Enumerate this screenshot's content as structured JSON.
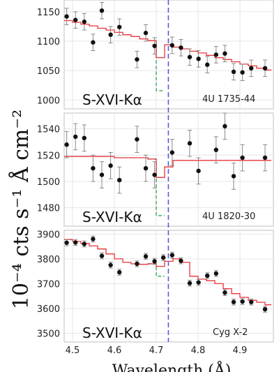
{
  "chart_data": {
    "type": "scatter",
    "ylabel": "10⁻⁴ cts s⁻¹ Å cm⁻²",
    "xlabel": "Wavelength (Å)",
    "xlim": [
      4.48,
      4.98
    ],
    "x_ticks": [
      "4.5",
      "4.6",
      "4.7",
      "4.8",
      "4.9"
    ],
    "x_tick_values": [
      4.5,
      4.6,
      4.7,
      4.8,
      4.9
    ],
    "reference_line_x": 4.729,
    "colors": {
      "data": "#111111",
      "model": "#e8333a",
      "absorption_model": "#3aa35a",
      "reference_line": "#5a5adc",
      "grid": "#e6e6e6"
    },
    "panels": [
      {
        "line_label": "S-XVI-Kα",
        "source": "4U 1735-44",
        "ylim": [
          985,
          1170
        ],
        "y_ticks": [
          "1150",
          "1100",
          "1050",
          "1000"
        ],
        "y_tick_values": [
          1150,
          1100,
          1050,
          1000
        ],
        "points": [
          {
            "x": 4.486,
            "y": 1142,
            "err": 14
          },
          {
            "x": 4.507,
            "y": 1136,
            "err": 14
          },
          {
            "x": 4.528,
            "y": 1133,
            "err": 14
          },
          {
            "x": 4.549,
            "y": 1098,
            "err": 14
          },
          {
            "x": 4.57,
            "y": 1152,
            "err": 14
          },
          {
            "x": 4.591,
            "y": 1111,
            "err": 14
          },
          {
            "x": 4.612,
            "y": 1124,
            "err": 14
          },
          {
            "x": 4.654,
            "y": 1069,
            "err": 14
          },
          {
            "x": 4.675,
            "y": 1114,
            "err": 14
          },
          {
            "x": 4.696,
            "y": 1092,
            "err": 14
          },
          {
            "x": 4.738,
            "y": 1093,
            "err": 14
          },
          {
            "x": 4.759,
            "y": 1089,
            "err": 14
          },
          {
            "x": 4.78,
            "y": 1073,
            "err": 14
          },
          {
            "x": 4.801,
            "y": 1070,
            "err": 14
          },
          {
            "x": 4.822,
            "y": 1060,
            "err": 14
          },
          {
            "x": 4.843,
            "y": 1077,
            "err": 14
          },
          {
            "x": 4.864,
            "y": 1079,
            "err": 14
          },
          {
            "x": 4.885,
            "y": 1048,
            "err": 14
          },
          {
            "x": 4.906,
            "y": 1047,
            "err": 14
          },
          {
            "x": 4.927,
            "y": 1054,
            "err": 14
          },
          {
            "x": 4.96,
            "y": 1054,
            "err": 14
          }
        ],
        "model": [
          {
            "x": 4.48,
            "y": 1135
          },
          {
            "x": 4.5,
            "y": 1132
          },
          {
            "x": 4.52,
            "y": 1129
          },
          {
            "x": 4.54,
            "y": 1126
          },
          {
            "x": 4.56,
            "y": 1122
          },
          {
            "x": 4.58,
            "y": 1119
          },
          {
            "x": 4.6,
            "y": 1115
          },
          {
            "x": 4.62,
            "y": 1111
          },
          {
            "x": 4.64,
            "y": 1108
          },
          {
            "x": 4.66,
            "y": 1104
          },
          {
            "x": 4.68,
            "y": 1101
          },
          {
            "x": 4.7,
            "y": 1072
          },
          {
            "x": 4.72,
            "y": 1094
          },
          {
            "x": 4.74,
            "y": 1090
          },
          {
            "x": 4.76,
            "y": 1087
          },
          {
            "x": 4.78,
            "y": 1083
          },
          {
            "x": 4.8,
            "y": 1080
          },
          {
            "x": 4.82,
            "y": 1076
          },
          {
            "x": 4.84,
            "y": 1072
          },
          {
            "x": 4.86,
            "y": 1069
          },
          {
            "x": 4.88,
            "y": 1065
          },
          {
            "x": 4.9,
            "y": 1061
          },
          {
            "x": 4.92,
            "y": 1058
          },
          {
            "x": 4.94,
            "y": 1054
          },
          {
            "x": 4.96,
            "y": 1051
          },
          {
            "x": 4.975,
            "y": 1049
          }
        ],
        "absorption_model": [
          {
            "x": 4.68,
            "y": 1101
          },
          {
            "x": 4.7,
            "y": 1016
          },
          {
            "x": 4.72,
            "y": 1094
          }
        ]
      },
      {
        "line_label": "S-XVI-Kα",
        "source": "4U 1820-30",
        "ylim": [
          1466,
          1552
        ],
        "y_ticks": [
          "1540",
          "1520",
          "1500",
          "1480"
        ],
        "y_tick_values": [
          1540,
          1520,
          1500,
          1480
        ],
        "points": [
          {
            "x": 4.486,
            "y": 1528,
            "err": 10
          },
          {
            "x": 4.507,
            "y": 1534,
            "err": 10
          },
          {
            "x": 4.528,
            "y": 1533,
            "err": 10
          },
          {
            "x": 4.549,
            "y": 1510,
            "err": 10
          },
          {
            "x": 4.57,
            "y": 1505,
            "err": 10
          },
          {
            "x": 4.591,
            "y": 1512,
            "err": 10
          },
          {
            "x": 4.612,
            "y": 1501,
            "err": 10
          },
          {
            "x": 4.654,
            "y": 1532,
            "err": 10
          },
          {
            "x": 4.675,
            "y": 1510,
            "err": 10
          },
          {
            "x": 4.696,
            "y": 1505,
            "err": 10
          },
          {
            "x": 4.738,
            "y": 1522,
            "err": 10
          },
          {
            "x": 4.78,
            "y": 1529,
            "err": 10
          },
          {
            "x": 4.801,
            "y": 1508,
            "err": 10
          },
          {
            "x": 4.843,
            "y": 1524,
            "err": 10
          },
          {
            "x": 4.864,
            "y": 1542,
            "err": 10
          },
          {
            "x": 4.885,
            "y": 1504,
            "err": 10
          },
          {
            "x": 4.906,
            "y": 1518,
            "err": 10
          },
          {
            "x": 4.96,
            "y": 1518,
            "err": 10
          }
        ],
        "model": [
          {
            "x": 4.48,
            "y": 1519
          },
          {
            "x": 4.5,
            "y": 1519
          },
          {
            "x": 4.52,
            "y": 1519
          },
          {
            "x": 4.54,
            "y": 1519
          },
          {
            "x": 4.56,
            "y": 1519
          },
          {
            "x": 4.58,
            "y": 1519
          },
          {
            "x": 4.6,
            "y": 1518
          },
          {
            "x": 4.62,
            "y": 1518
          },
          {
            "x": 4.64,
            "y": 1518
          },
          {
            "x": 4.66,
            "y": 1518
          },
          {
            "x": 4.68,
            "y": 1517
          },
          {
            "x": 4.7,
            "y": 1503
          },
          {
            "x": 4.72,
            "y": 1511
          },
          {
            "x": 4.74,
            "y": 1516
          },
          {
            "x": 4.76,
            "y": 1516
          },
          {
            "x": 4.78,
            "y": 1516
          },
          {
            "x": 4.8,
            "y": 1516
          },
          {
            "x": 4.82,
            "y": 1516
          },
          {
            "x": 4.84,
            "y": 1516
          },
          {
            "x": 4.86,
            "y": 1516
          },
          {
            "x": 4.88,
            "y": 1516
          },
          {
            "x": 4.9,
            "y": 1516
          },
          {
            "x": 4.92,
            "y": 1516
          },
          {
            "x": 4.94,
            "y": 1516
          },
          {
            "x": 4.96,
            "y": 1516
          },
          {
            "x": 4.975,
            "y": 1516
          }
        ],
        "absorption_model": [
          {
            "x": 4.68,
            "y": 1517
          },
          {
            "x": 4.7,
            "y": 1474
          },
          {
            "x": 4.72,
            "y": 1511
          }
        ]
      },
      {
        "line_label": "S-XVI-Kα",
        "source": "Cyg X-2",
        "ylim": [
          3465,
          3915
        ],
        "y_ticks": [
          "3900",
          "3800",
          "3700",
          "3600",
          "3500"
        ],
        "y_tick_values": [
          3900,
          3800,
          3700,
          3600,
          3500
        ],
        "points": [
          {
            "x": 4.486,
            "y": 3865,
            "err": 12
          },
          {
            "x": 4.507,
            "y": 3866,
            "err": 12
          },
          {
            "x": 4.528,
            "y": 3860,
            "err": 12
          },
          {
            "x": 4.549,
            "y": 3880,
            "err": 12
          },
          {
            "x": 4.57,
            "y": 3812,
            "err": 12
          },
          {
            "x": 4.591,
            "y": 3775,
            "err": 12
          },
          {
            "x": 4.612,
            "y": 3746,
            "err": 12
          },
          {
            "x": 4.654,
            "y": 3780,
            "err": 12
          },
          {
            "x": 4.675,
            "y": 3810,
            "err": 12
          },
          {
            "x": 4.696,
            "y": 3790,
            "err": 12
          },
          {
            "x": 4.717,
            "y": 3805,
            "err": 12
          },
          {
            "x": 4.738,
            "y": 3815,
            "err": 12
          },
          {
            "x": 4.759,
            "y": 3792,
            "err": 12
          },
          {
            "x": 4.78,
            "y": 3702,
            "err": 12
          },
          {
            "x": 4.801,
            "y": 3705,
            "err": 12
          },
          {
            "x": 4.822,
            "y": 3732,
            "err": 12
          },
          {
            "x": 4.843,
            "y": 3741,
            "err": 12
          },
          {
            "x": 4.864,
            "y": 3664,
            "err": 12
          },
          {
            "x": 4.885,
            "y": 3626,
            "err": 12
          },
          {
            "x": 4.906,
            "y": 3628,
            "err": 12
          },
          {
            "x": 4.927,
            "y": 3626,
            "err": 12
          },
          {
            "x": 4.96,
            "y": 3597,
            "err": 12
          }
        ],
        "model": [
          {
            "x": 4.48,
            "y": 3878
          },
          {
            "x": 4.5,
            "y": 3870
          },
          {
            "x": 4.52,
            "y": 3862
          },
          {
            "x": 4.54,
            "y": 3852
          },
          {
            "x": 4.56,
            "y": 3840
          },
          {
            "x": 4.58,
            "y": 3820
          },
          {
            "x": 4.6,
            "y": 3800
          },
          {
            "x": 4.62,
            "y": 3786
          },
          {
            "x": 4.64,
            "y": 3780
          },
          {
            "x": 4.66,
            "y": 3778
          },
          {
            "x": 4.68,
            "y": 3780
          },
          {
            "x": 4.7,
            "y": 3770
          },
          {
            "x": 4.72,
            "y": 3790
          },
          {
            "x": 4.74,
            "y": 3800
          },
          {
            "x": 4.76,
            "y": 3786
          },
          {
            "x": 4.78,
            "y": 3730
          },
          {
            "x": 4.8,
            "y": 3718
          },
          {
            "x": 4.82,
            "y": 3712
          },
          {
            "x": 4.84,
            "y": 3700
          },
          {
            "x": 4.86,
            "y": 3680
          },
          {
            "x": 4.88,
            "y": 3660
          },
          {
            "x": 4.9,
            "y": 3645
          },
          {
            "x": 4.92,
            "y": 3633
          },
          {
            "x": 4.94,
            "y": 3625
          },
          {
            "x": 4.96,
            "y": 3615
          },
          {
            "x": 4.975,
            "y": 3608
          }
        ],
        "absorption_model": [
          {
            "x": 4.68,
            "y": 3780
          },
          {
            "x": 4.7,
            "y": 3730
          },
          {
            "x": 4.72,
            "y": 3790
          }
        ]
      }
    ]
  }
}
